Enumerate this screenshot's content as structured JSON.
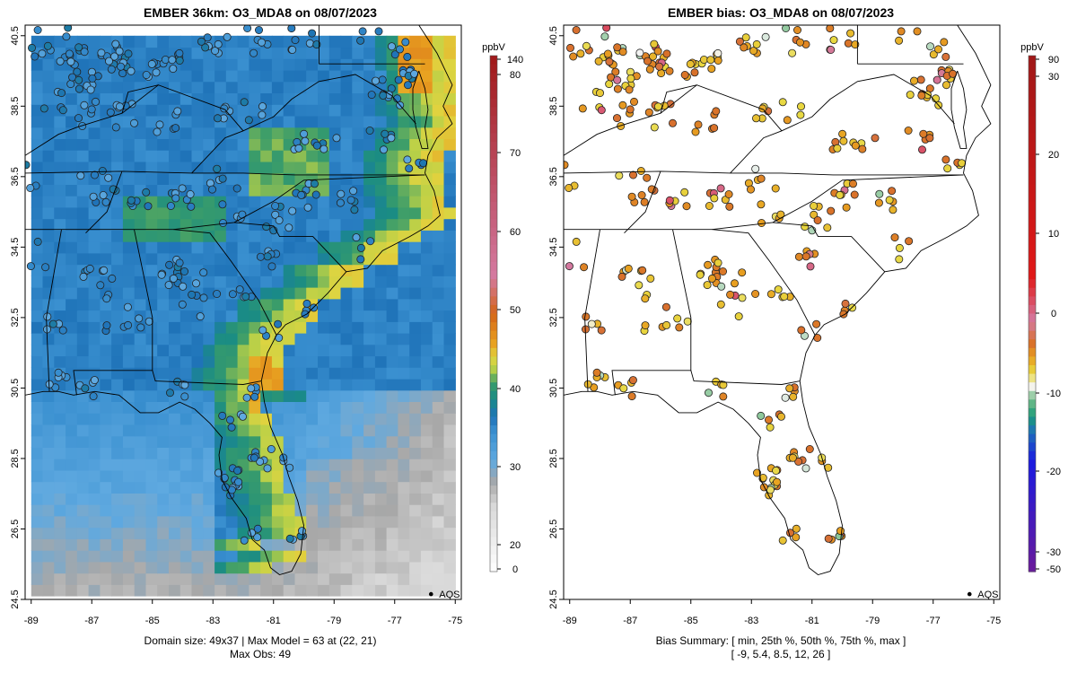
{
  "left_panel": {
    "title": "EMBER 36km: O3_MDA8 on 08/07/2023",
    "y_ticks": [
      "40.5",
      "38.5",
      "36.5",
      "34.5",
      "32.5",
      "30.5",
      "28.5",
      "26.5",
      "24.5"
    ],
    "x_ticks": [
      "-89",
      "-87",
      "-85",
      "-83",
      "-81",
      "-79",
      "-77",
      "-75"
    ],
    "legend_point_label": "AQS",
    "colorbar_unit": "ppbV",
    "colorbar_ticks": [
      "140",
      "80",
      "70",
      "60",
      "50",
      "40",
      "30",
      "20",
      "0"
    ],
    "footer_line1": "Domain size: 49x37 | Max Model = 63 at (22, 21)",
    "footer_line2": "Max Obs: 49"
  },
  "right_panel": {
    "title": "EMBER bias: O3_MDA8 on 08/07/2023",
    "y_ticks": [
      "40.5",
      "38.5",
      "36.5",
      "34.5",
      "32.5",
      "30.5",
      "28.5",
      "26.5",
      "24.5"
    ],
    "x_ticks": [
      "-89",
      "-87",
      "-85",
      "-83",
      "-81",
      "-79",
      "-77",
      "-75"
    ],
    "legend_point_label": "AQS",
    "colorbar_unit": "ppbV",
    "colorbar_ticks": [
      "90",
      "30",
      "20",
      "10",
      "0",
      "-10",
      "-20",
      "-30",
      "-50"
    ],
    "footer_line1": "Bias Summary: [ min, 25th %, 50th %, 75th %, max ]",
    "footer_line2": "[ -9,   5.4,   8.5,   12,   26 ]"
  },
  "colors": {
    "model_scale": [
      "#ffffff",
      "#c8c8c8",
      "#9c9c9c",
      "#5aa7e0",
      "#1f73b8",
      "#1a8c84",
      "#48a868",
      "#c8d848",
      "#e8d840",
      "#e8a820",
      "#d46418",
      "#d47aa0",
      "#a01818"
    ],
    "bias_scale": [
      "#6a1a9a",
      "#1a1ae0",
      "#1f73b8",
      "#1a9a78",
      "#ffffff",
      "#e8d840",
      "#e89a20",
      "#d8702a",
      "#d47aa0",
      "#e01818",
      "#a01818"
    ]
  },
  "chart_data": [
    {
      "type": "map-heatmap",
      "title": "EMBER 36km: O3_MDA8 on 08/07/2023",
      "units": "ppbV",
      "domain_size": "49x37",
      "max_model": 63,
      "max_model_cell": [
        22,
        21
      ],
      "max_obs": 49,
      "xlim": [
        -89.2,
        -74.8
      ],
      "ylim": [
        24.5,
        40.8
      ],
      "colorbar_range": [
        0,
        140
      ]
    },
    {
      "type": "map-scatter",
      "title": "EMBER bias: O3_MDA8 on 08/07/2023",
      "units": "ppbV",
      "bias_summary": {
        "min": -9,
        "p25": 5.4,
        "p50": 8.5,
        "p75": 12,
        "max": 26
      },
      "xlim": [
        -89.2,
        -74.8
      ],
      "ylim": [
        24.5,
        40.8
      ],
      "colorbar_range": [
        -50,
        90
      ]
    }
  ]
}
